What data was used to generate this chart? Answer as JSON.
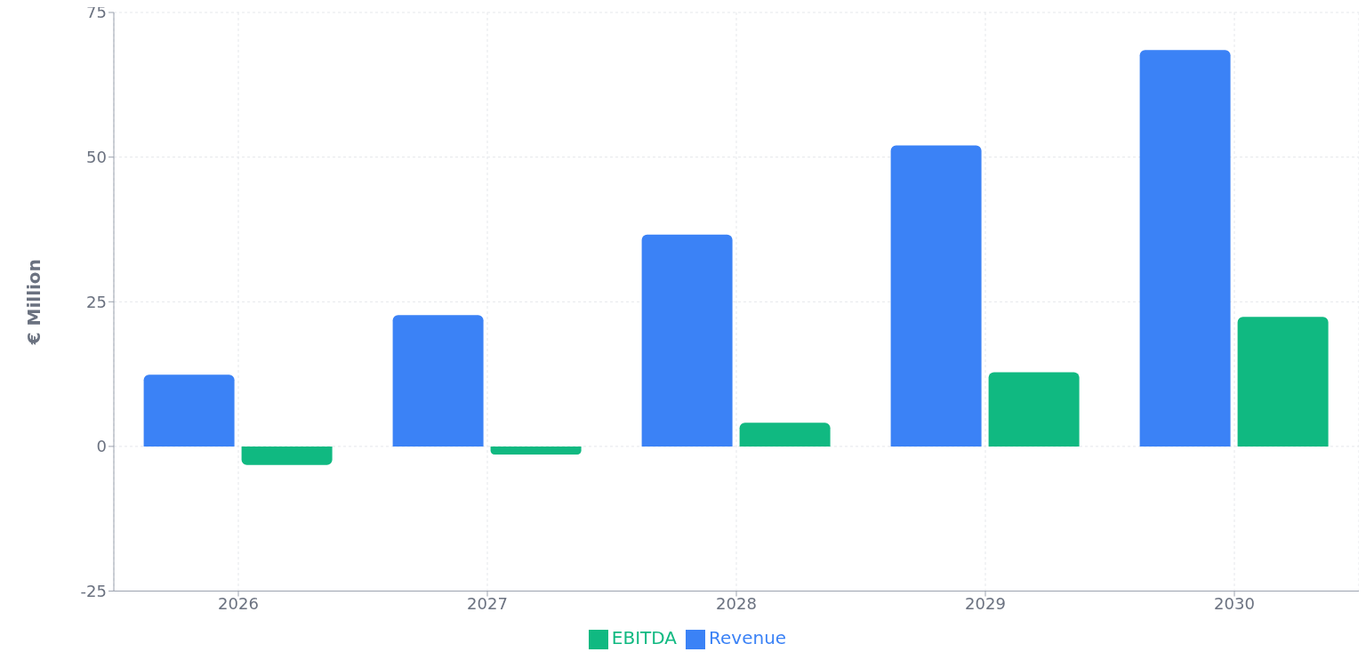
{
  "chart_data": {
    "type": "bar",
    "ylabel": "€ Million",
    "categories": [
      "2026",
      "2027",
      "2028",
      "2029",
      "2030"
    ],
    "series": [
      {
        "name": "Revenue",
        "color": "#3b82f6",
        "values": [
          12.4,
          22.7,
          36.6,
          52.0,
          68.5
        ]
      },
      {
        "name": "EBITDA",
        "color": "#10b981",
        "values": [
          -3.2,
          -1.4,
          4.1,
          12.8,
          22.4
        ]
      }
    ],
    "ylim": [
      -25,
      75
    ],
    "yticks": [
      -25,
      0,
      25,
      50,
      75
    ],
    "grid": true,
    "legend": "bottom"
  }
}
